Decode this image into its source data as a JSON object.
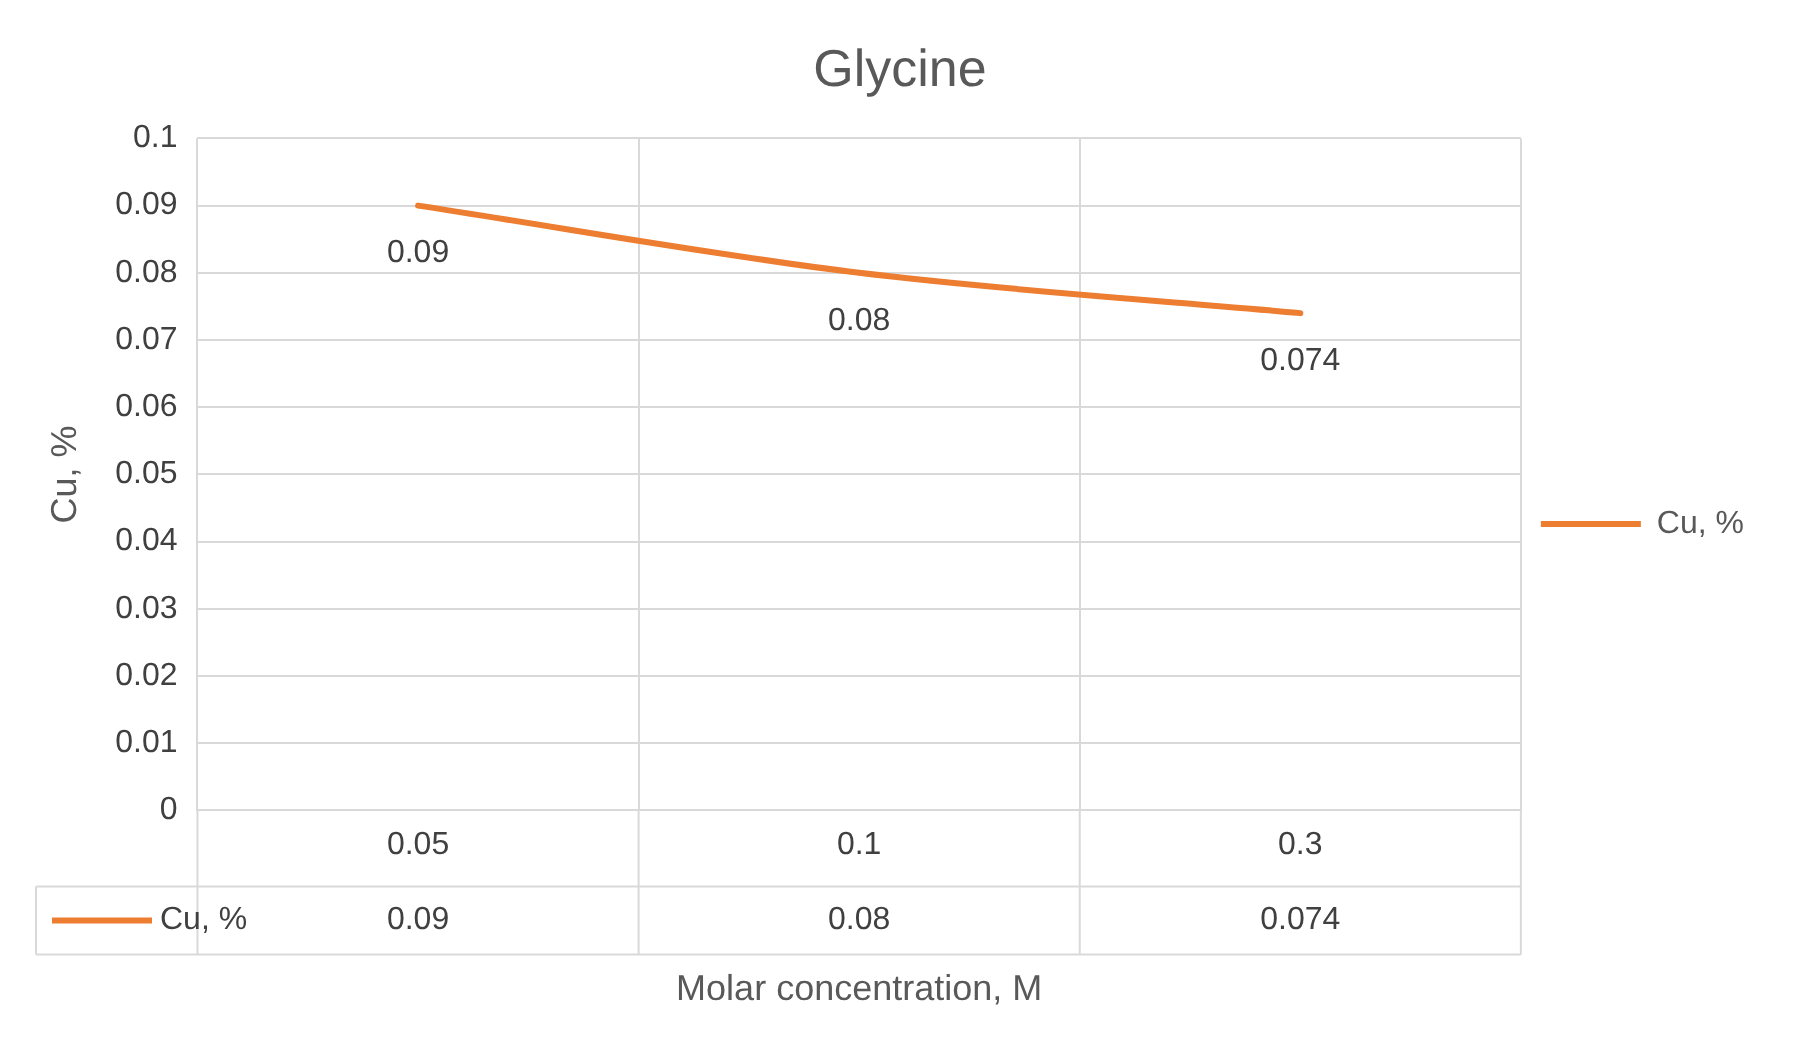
{
  "chart_data": {
    "type": "line",
    "title": "Glycine",
    "xlabel": "Molar concentration, M",
    "ylabel": "Cu, %",
    "categories": [
      "0.05",
      "0.1",
      "0.3"
    ],
    "series": [
      {
        "name": "Cu, %",
        "color": "#ed7d31",
        "values": [
          0.09,
          0.08,
          0.074
        ]
      }
    ],
    "annotations": [
      {
        "text": "0.09",
        "x": "0.05",
        "y": 0.09
      },
      {
        "text": "0.08",
        "x": "0.1",
        "y": 0.08
      },
      {
        "text": "0.074",
        "x": "0.3",
        "y": 0.074
      }
    ],
    "ylim": [
      0,
      0.1
    ],
    "yticks": [
      0,
      0.01,
      0.02,
      0.03,
      0.04,
      0.05,
      0.06,
      0.07,
      0.08,
      0.09,
      0.1
    ],
    "grid": true,
    "legend": "right",
    "marker": "none",
    "line_style": "solid",
    "data_labels": true
  }
}
